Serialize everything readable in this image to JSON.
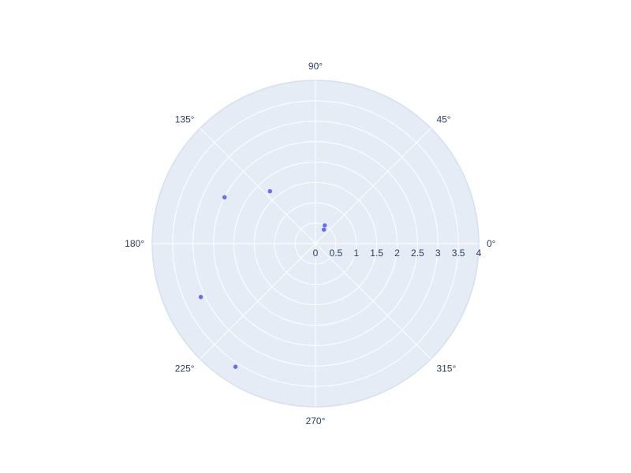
{
  "chart_data": {
    "type": "scatter",
    "subtype": "polar",
    "radial_axis": {
      "range": [
        0,
        4
      ],
      "ticks": [
        0,
        0.5,
        1,
        1.5,
        2,
        2.5,
        3,
        3.5,
        4
      ],
      "tick_labels": [
        "0",
        "0.5",
        "1",
        "1.5",
        "2",
        "2.5",
        "3",
        "3.5",
        "4"
      ],
      "angle_deg": 0
    },
    "angular_axis": {
      "unit": "degrees",
      "direction": "counterclockwise",
      "ticks": [
        0,
        45,
        90,
        135,
        180,
        225,
        270,
        315
      ],
      "tick_labels": [
        "0°",
        "45°",
        "90°",
        "135°",
        "180°",
        "225°",
        "270°",
        "315°"
      ]
    },
    "grid": true,
    "legend": false,
    "colors": {
      "plot_background": "#e5ecf6",
      "grid": "#ffffff",
      "marker": "#636efa",
      "text": "#2a3f5f"
    },
    "series": [
      {
        "points": [
          {
            "r": 0.5,
            "theta": 63
          },
          {
            "r": 0.4,
            "theta": 59
          },
          {
            "r": 1.7,
            "theta": 131
          },
          {
            "r": 2.5,
            "theta": 153
          },
          {
            "r": 3.1,
            "theta": 205
          },
          {
            "r": 3.6,
            "theta": 237
          }
        ]
      }
    ]
  }
}
